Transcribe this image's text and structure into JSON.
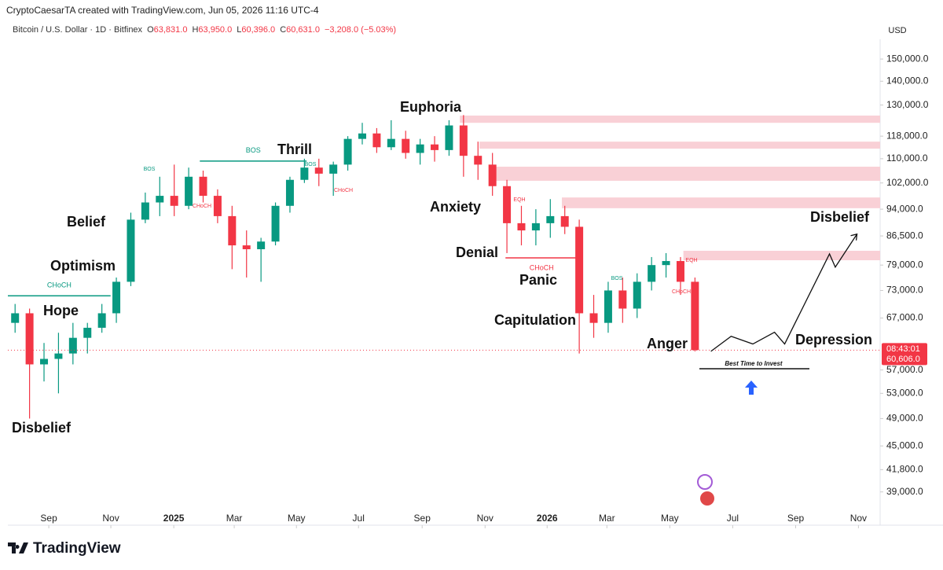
{
  "header": {
    "credit": "CryptoCaesarTA created with TradingView.com, Jun 05, 2026 11:16 UTC-4",
    "symbol": "Bitcoin / U.S. Dollar · 1D · Bitfinex",
    "quote": [
      {
        "k": "O",
        "v": "63,831.0"
      },
      {
        "k": "H",
        "v": "63,950.0"
      },
      {
        "k": "L",
        "v": "60,396.0"
      },
      {
        "k": "C",
        "v": "60,631.0"
      }
    ],
    "change": "−3,208.0 (−5.03%)",
    "currency": "USD",
    "price_tag": {
      "time": "08:43:01",
      "price": "60,606.0"
    }
  },
  "footer": {
    "logo": "TradingView"
  },
  "chart_data": {
    "type": "candlestick",
    "log_scale": true,
    "grid": false,
    "up_color": "#089981",
    "down_color": "#f23645",
    "ohlc": [
      [
        66000,
        70000,
        64000,
        68000
      ],
      [
        68000,
        69000,
        49000,
        58000
      ],
      [
        58000,
        62000,
        55000,
        59000
      ],
      [
        59000,
        64000,
        53000,
        60000
      ],
      [
        60000,
        66000,
        58000,
        63000
      ],
      [
        63000,
        66000,
        60000,
        65000
      ],
      [
        65000,
        70000,
        64000,
        68000
      ],
      [
        68000,
        76000,
        66000,
        75000
      ],
      [
        75000,
        93000,
        74000,
        91000
      ],
      [
        91000,
        99000,
        90000,
        96000
      ],
      [
        96000,
        104000,
        92000,
        98000
      ],
      [
        98000,
        108000,
        92000,
        95000
      ],
      [
        95000,
        107000,
        94000,
        104000
      ],
      [
        104000,
        106000,
        96000,
        98000
      ],
      [
        98000,
        100000,
        90000,
        92000
      ],
      [
        92000,
        95000,
        78000,
        84000
      ],
      [
        84000,
        88000,
        76000,
        83000
      ],
      [
        83000,
        86000,
        75000,
        85000
      ],
      [
        85000,
        96000,
        84000,
        95000
      ],
      [
        95000,
        104000,
        93000,
        103000
      ],
      [
        103000,
        110000,
        102000,
        107000
      ],
      [
        107000,
        110000,
        101000,
        105000
      ],
      [
        105000,
        109000,
        98000,
        108000
      ],
      [
        108000,
        118000,
        106000,
        117000
      ],
      [
        117000,
        123000,
        115000,
        119000
      ],
      [
        119000,
        121000,
        112000,
        114000
      ],
      [
        114000,
        124000,
        113000,
        117000
      ],
      [
        117000,
        120000,
        110000,
        112000
      ],
      [
        112000,
        117000,
        108000,
        115000
      ],
      [
        115000,
        118000,
        109000,
        113000
      ],
      [
        113000,
        124000,
        111000,
        122000
      ],
      [
        122000,
        126000,
        104000,
        111000
      ],
      [
        111000,
        116000,
        103000,
        108000
      ],
      [
        108000,
        112000,
        98000,
        101000
      ],
      [
        101000,
        103000,
        82000,
        90000
      ],
      [
        90000,
        95000,
        84000,
        88000
      ],
      [
        88000,
        94000,
        84000,
        90000
      ],
      [
        90000,
        97000,
        86000,
        92000
      ],
      [
        92000,
        95000,
        87000,
        89000
      ],
      [
        89000,
        91000,
        60000,
        68000
      ],
      [
        68000,
        72000,
        63000,
        66000
      ],
      [
        66000,
        75000,
        64000,
        73000
      ],
      [
        73000,
        76000,
        66000,
        69000
      ],
      [
        69000,
        77000,
        67000,
        75000
      ],
      [
        75000,
        81000,
        73000,
        79000
      ],
      [
        79000,
        82000,
        76000,
        80000
      ],
      [
        80000,
        81000,
        72000,
        75000
      ],
      [
        75000,
        76000,
        60396,
        60631
      ]
    ],
    "xlim": [
      -0.5,
      59.8
    ],
    "xticks": [
      {
        "value": 2.33,
        "label": "Sep"
      },
      {
        "value": 6.62,
        "label": "Nov"
      },
      {
        "value": 10.97,
        "label": "2025"
      },
      {
        "value": 15.15,
        "label": "Mar"
      },
      {
        "value": 19.45,
        "label": "May"
      },
      {
        "value": 23.74,
        "label": "Jul"
      },
      {
        "value": 28.14,
        "label": "Sep"
      },
      {
        "value": 32.49,
        "label": "Nov"
      },
      {
        "value": 36.78,
        "label": "2026"
      },
      {
        "value": 40.91,
        "label": "Mar"
      },
      {
        "value": 45.26,
        "label": "May"
      },
      {
        "value": 49.61,
        "label": "Jul"
      },
      {
        "value": 53.96,
        "label": "Sep"
      },
      {
        "value": 58.3,
        "label": "Nov"
      }
    ],
    "ylim": [
      37200,
      159500
    ],
    "yticks": [
      {
        "value": 150000,
        "label": "150,000.0"
      },
      {
        "value": 140000,
        "label": "140,000.0"
      },
      {
        "value": 130000,
        "label": "130,000.0"
      },
      {
        "value": 118000,
        "label": "118,000.0"
      },
      {
        "value": 110000,
        "label": "110,000.0"
      },
      {
        "value": 102000,
        "label": "102,000.0"
      },
      {
        "value": 94000,
        "label": "94,000.0"
      },
      {
        "value": 86500,
        "label": "86,500.0"
      },
      {
        "value": 79000,
        "label": "79,000.0"
      },
      {
        "value": 73000,
        "label": "73,000.0"
      },
      {
        "value": 67000,
        "label": "67,000.0"
      },
      {
        "value": 57000,
        "label": "57,000.0"
      },
      {
        "value": 53000,
        "label": "53,000.0"
      },
      {
        "value": 49000,
        "label": "49,000.0"
      },
      {
        "value": 45000,
        "label": "45,000.0"
      },
      {
        "value": 41800,
        "label": "41,800.0"
      },
      {
        "value": 39000,
        "label": "39,000.0"
      }
    ],
    "zones": [
      {
        "start": 30.75,
        "low": 123000,
        "high": 125800
      },
      {
        "start": 32.1,
        "low": 113500,
        "high": 116000
      },
      {
        "start": 32.9,
        "low": 102700,
        "high": 107300
      },
      {
        "start": 37.8,
        "low": 94300,
        "high": 97500
      },
      {
        "start": 46.2,
        "low": 80200,
        "high": 82600
      }
    ],
    "zone_color": "#f9d0d6",
    "levels": [
      {
        "start": -0.5,
        "end": 6.6,
        "value": 71800,
        "label": "CHoCH",
        "color": "#089981"
      },
      {
        "start": 12.77,
        "end": 20.15,
        "value": 109200,
        "label": "BOS",
        "color": "#089981"
      },
      {
        "start": 33.9,
        "end": 38.9,
        "value": 80800,
        "label": "CHoCH",
        "color": "#f23645"
      }
    ],
    "tags": [
      {
        "text": "BOS",
        "color": "#089981"
      },
      {
        "text": "CHoCH",
        "color": "#f23645"
      },
      {
        "text": "BOS",
        "color": "#089981"
      },
      {
        "text": "CHoCH",
        "color": "#f23645"
      },
      {
        "text": "EQH",
        "color": "#f23645"
      },
      {
        "text": "EQH",
        "color": "#f23645"
      },
      {
        "text": "BOS",
        "color": "#089981"
      },
      {
        "text": "CHoCH",
        "color": "#f23645"
      }
    ],
    "projection": {
      "x": [
        48.1,
        49.5,
        51.0,
        52.5,
        53.2,
        56.3,
        56.7,
        58.2
      ],
      "values": [
        60400,
        63300,
        61800,
        64100,
        61800,
        81800,
        78500,
        87000
      ]
    },
    "annotations": [
      "Disbelief",
      "Hope",
      "Optimism",
      "Belief",
      "Thrill",
      "Euphoria",
      "Anxiety",
      "Denial",
      "Panic",
      "Capitulation",
      "Anger",
      "Depression",
      "Disbelief"
    ],
    "callout": "Best Time to Invest"
  }
}
